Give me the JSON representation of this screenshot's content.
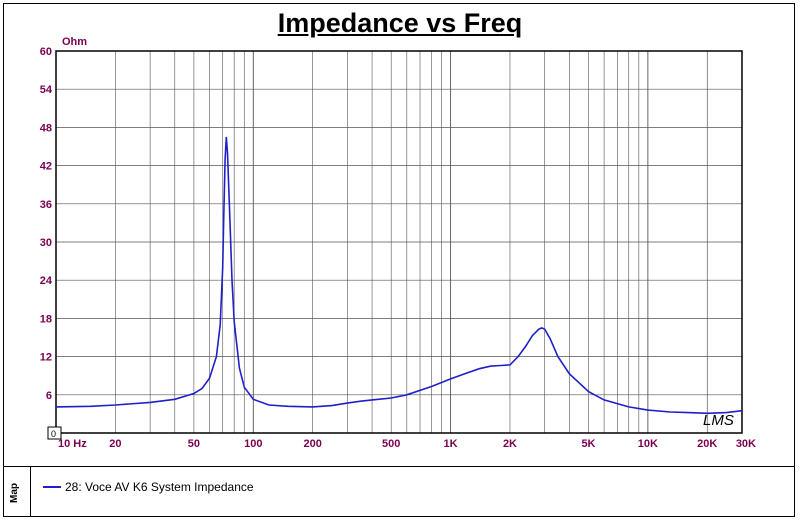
{
  "chart_data": {
    "type": "line",
    "title": "Impedance vs Freq",
    "ylabel": "Ohm",
    "xscale": "log",
    "xlim": [
      10,
      30000
    ],
    "ylim": [
      0,
      60
    ],
    "grid": true,
    "y_ticks": [
      0,
      6,
      12,
      18,
      24,
      30,
      36,
      42,
      48,
      54,
      60
    ],
    "y_tick_labels": [
      "6",
      "12",
      "18",
      "24",
      "30",
      "36",
      "42",
      "48",
      "54",
      "60"
    ],
    "x_ticks": [
      10,
      20,
      50,
      100,
      200,
      500,
      1000,
      2000,
      5000,
      10000,
      20000,
      30000
    ],
    "x_tick_labels": [
      "10 Hz",
      "20",
      "50",
      "100",
      "200",
      "500",
      "1K",
      "2K",
      "5K",
      "10K",
      "20K",
      "30K"
    ],
    "legend_position": "bottom",
    "legend_title": "Map",
    "series": [
      {
        "name": "28: Voce AV K6 System Impedance",
        "color": "#2020c8",
        "x": [
          10,
          15,
          20,
          30,
          40,
          50,
          55,
          60,
          65,
          68,
          70,
          71,
          72,
          73,
          74,
          76,
          78,
          80,
          85,
          90,
          100,
          120,
          150,
          200,
          250,
          300,
          350,
          400,
          500,
          600,
          800,
          1000,
          1200,
          1400,
          1600,
          1800,
          2000,
          2200,
          2400,
          2600,
          2800,
          2900,
          3000,
          3200,
          3500,
          4000,
          5000,
          6000,
          8000,
          10000,
          13000,
          16000,
          20000,
          25000,
          30000
        ],
        "y": [
          4.1,
          4.2,
          4.4,
          4.8,
          5.3,
          6.2,
          7.0,
          8.6,
          12.0,
          17.0,
          26.0,
          35.0,
          43.0,
          46.5,
          44.0,
          34.0,
          24.0,
          17.5,
          10.2,
          7.2,
          5.3,
          4.4,
          4.2,
          4.1,
          4.3,
          4.7,
          5.0,
          5.2,
          5.5,
          6.0,
          7.3,
          8.5,
          9.4,
          10.1,
          10.5,
          10.6,
          10.7,
          12.0,
          13.6,
          15.3,
          16.3,
          16.5,
          16.3,
          14.8,
          12.0,
          9.3,
          6.5,
          5.2,
          4.1,
          3.6,
          3.3,
          3.2,
          3.1,
          3.2,
          3.5
        ]
      }
    ]
  },
  "watermark": "LMS",
  "corner_marker": "0"
}
